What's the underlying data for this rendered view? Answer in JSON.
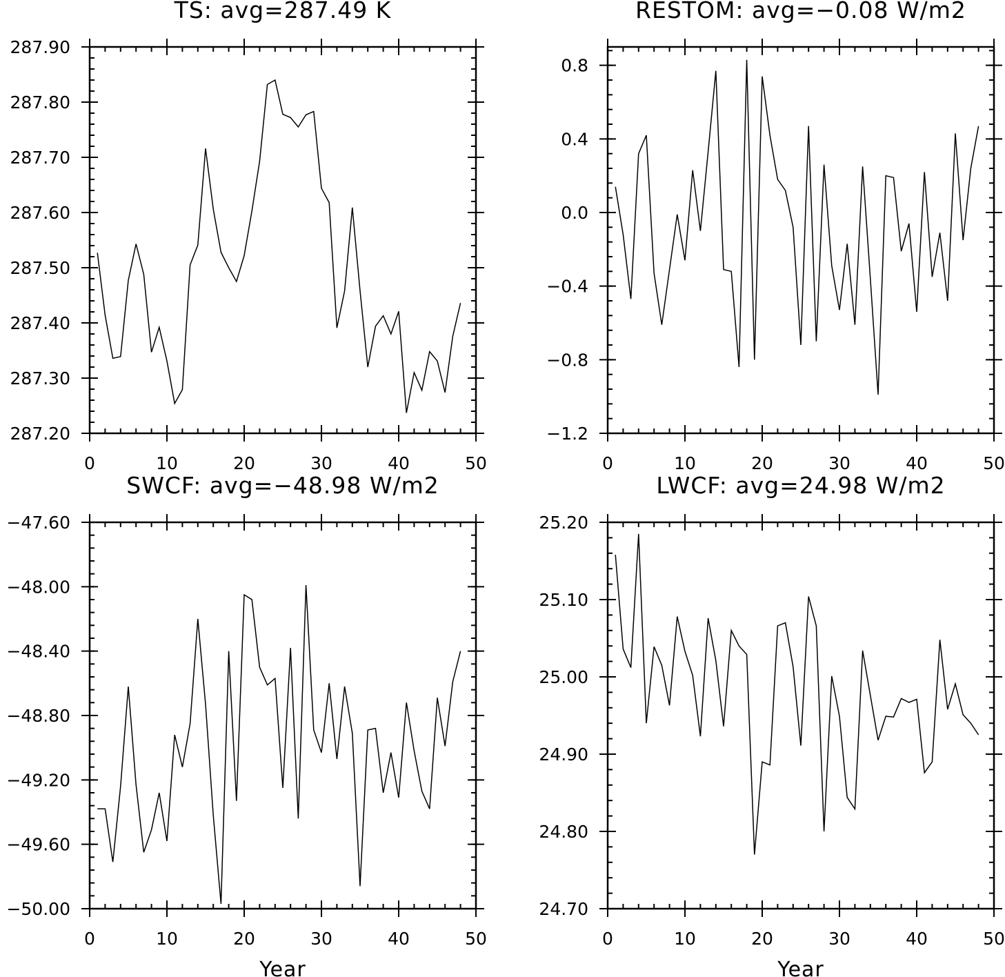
{
  "chart_data": [
    {
      "type": "line",
      "title": "TS: avg=287.49 K",
      "xlabel": "",
      "xlim": [
        0,
        50
      ],
      "ylim": [
        287.2,
        287.9
      ],
      "xticks": [
        0,
        10,
        20,
        30,
        40,
        50
      ],
      "xtick_labels": [
        "0",
        "10",
        "20",
        "30",
        "40",
        "50"
      ],
      "yticks": [
        287.2,
        287.3,
        287.4,
        287.5,
        287.6,
        287.7,
        287.8,
        287.9
      ],
      "ytick_labels": [
        "287.20",
        "287.30",
        "287.40",
        "287.50",
        "287.60",
        "287.70",
        "287.80",
        "287.90"
      ],
      "y_minor_step": 0.02,
      "x_minor_step": 2,
      "grid": false,
      "series": [
        {
          "x": [
            1,
            2,
            3,
            4,
            5,
            6,
            7,
            8,
            9,
            10,
            11,
            12,
            13,
            14,
            15,
            16,
            17,
            18,
            19,
            20,
            21,
            22,
            23,
            24,
            25,
            26,
            27,
            28,
            29,
            30,
            31,
            32,
            33,
            34,
            35,
            36,
            37,
            38,
            39,
            40,
            41,
            42,
            43,
            44,
            45,
            46,
            47,
            48
          ],
          "values": [
            287.527,
            287.414,
            287.336,
            287.339,
            287.477,
            287.543,
            287.488,
            287.347,
            287.392,
            287.331,
            287.254,
            287.279,
            287.505,
            287.541,
            287.716,
            287.606,
            287.528,
            287.5,
            287.475,
            287.522,
            287.603,
            287.693,
            287.832,
            287.84,
            287.778,
            287.772,
            287.755,
            287.777,
            287.783,
            287.644,
            287.618,
            287.391,
            287.458,
            287.609,
            287.458,
            287.32,
            287.394,
            287.413,
            287.38,
            287.421,
            287.237,
            287.31,
            287.278,
            287.348,
            287.331,
            287.274,
            287.376,
            287.436
          ]
        }
      ]
    },
    {
      "type": "line",
      "title": "RESTOM: avg=−0.08 W/m2",
      "xlabel": "",
      "xlim": [
        0,
        50
      ],
      "ylim": [
        -1.2,
        0.9
      ],
      "xticks": [
        0,
        10,
        20,
        30,
        40,
        50
      ],
      "xtick_labels": [
        "0",
        "10",
        "20",
        "30",
        "40",
        "50"
      ],
      "yticks": [
        -1.2,
        -0.8,
        -0.4,
        0.0,
        0.4,
        0.8
      ],
      "ytick_labels": [
        "−1.2",
        "−0.8",
        "−0.4",
        "0.0",
        "0.4",
        "0.8"
      ],
      "y_minor_step": 0.08,
      "x_minor_step": 2,
      "grid": false,
      "series": [
        {
          "x": [
            1,
            2,
            3,
            4,
            5,
            6,
            7,
            8,
            9,
            10,
            11,
            12,
            13,
            14,
            15,
            16,
            17,
            18,
            19,
            20,
            21,
            22,
            23,
            24,
            25,
            26,
            27,
            28,
            29,
            30,
            31,
            32,
            33,
            34,
            35,
            36,
            37,
            38,
            39,
            40,
            41,
            42,
            43,
            44,
            45,
            46,
            47,
            48
          ],
          "values": [
            0.14,
            -0.12,
            -0.47,
            0.32,
            0.42,
            -0.33,
            -0.61,
            -0.31,
            -0.01,
            -0.26,
            0.23,
            -0.1,
            0.33,
            0.77,
            -0.31,
            -0.32,
            -0.84,
            0.83,
            -0.8,
            0.74,
            0.42,
            0.18,
            0.12,
            -0.08,
            -0.72,
            0.47,
            -0.7,
            0.26,
            -0.29,
            -0.53,
            -0.17,
            -0.61,
            0.25,
            -0.36,
            -0.99,
            0.2,
            0.19,
            -0.21,
            -0.06,
            -0.54,
            0.22,
            -0.35,
            -0.11,
            -0.48,
            0.43,
            -0.15,
            0.24,
            0.47
          ]
        }
      ]
    },
    {
      "type": "line",
      "title": "SWCF: avg=−48.98 W/m2",
      "xlabel": "Year",
      "xlim": [
        0,
        50
      ],
      "ylim": [
        -50.0,
        -47.6
      ],
      "xticks": [
        0,
        10,
        20,
        30,
        40,
        50
      ],
      "xtick_labels": [
        "0",
        "10",
        "20",
        "30",
        "40",
        "50"
      ],
      "yticks": [
        -50.0,
        -49.6,
        -49.2,
        -48.8,
        -48.4,
        -48.0,
        -47.6
      ],
      "ytick_labels": [
        "−50.00",
        "−49.60",
        "−49.20",
        "−48.80",
        "−48.40",
        "−48.00",
        "−47.60"
      ],
      "y_minor_step": 0.08,
      "x_minor_step": 2,
      "grid": false,
      "series": [
        {
          "x": [
            1,
            2,
            3,
            4,
            5,
            6,
            7,
            8,
            9,
            10,
            11,
            12,
            13,
            14,
            15,
            16,
            17,
            18,
            19,
            20,
            21,
            22,
            23,
            24,
            25,
            26,
            27,
            28,
            29,
            30,
            31,
            32,
            33,
            34,
            35,
            36,
            37,
            38,
            39,
            40,
            41,
            42,
            43,
            44,
            45,
            46,
            47,
            48
          ],
          "values": [
            -49.38,
            -49.38,
            -49.71,
            -49.24,
            -48.62,
            -49.23,
            -49.65,
            -49.51,
            -49.28,
            -49.58,
            -48.92,
            -49.12,
            -48.85,
            -48.2,
            -48.73,
            -49.42,
            -49.97,
            -48.4,
            -49.33,
            -48.05,
            -48.08,
            -48.5,
            -48.61,
            -48.57,
            -49.25,
            -48.38,
            -49.44,
            -47.99,
            -48.89,
            -49.03,
            -48.6,
            -49.07,
            -48.62,
            -48.91,
            -49.86,
            -48.89,
            -48.88,
            -49.28,
            -49.03,
            -49.31,
            -48.72,
            -49.02,
            -49.27,
            -49.38,
            -48.69,
            -48.99,
            -48.59,
            -48.4
          ]
        }
      ]
    },
    {
      "type": "line",
      "title": "LWCF: avg=24.98 W/m2",
      "xlabel": "Year",
      "xlim": [
        0,
        50
      ],
      "ylim": [
        24.7,
        25.2
      ],
      "xticks": [
        0,
        10,
        20,
        30,
        40,
        50
      ],
      "xtick_labels": [
        "0",
        "10",
        "20",
        "30",
        "40",
        "50"
      ],
      "yticks": [
        24.7,
        24.8,
        24.9,
        25.0,
        25.1,
        25.2
      ],
      "ytick_labels": [
        "24.70",
        "24.80",
        "24.90",
        "25.00",
        "25.10",
        "25.20"
      ],
      "y_minor_step": 0.02,
      "x_minor_step": 2,
      "grid": false,
      "series": [
        {
          "x": [
            1,
            2,
            3,
            4,
            5,
            6,
            7,
            8,
            9,
            10,
            11,
            12,
            13,
            14,
            15,
            16,
            17,
            18,
            19,
            20,
            21,
            22,
            23,
            24,
            25,
            26,
            27,
            28,
            29,
            30,
            31,
            32,
            33,
            34,
            35,
            36,
            37,
            38,
            39,
            40,
            41,
            42,
            43,
            44,
            45,
            46,
            47,
            48
          ],
          "values": [
            25.158,
            25.036,
            25.012,
            25.185,
            24.94,
            25.039,
            25.015,
            24.963,
            25.078,
            25.033,
            25.002,
            24.923,
            25.076,
            25.021,
            24.936,
            25.06,
            25.04,
            25.029,
            24.77,
            24.89,
            24.886,
            25.066,
            25.07,
            25.013,
            24.911,
            25.104,
            25.066,
            24.8,
            25.001,
            24.949,
            24.844,
            24.829,
            25.034,
            24.976,
            24.918,
            24.949,
            24.948,
            24.972,
            24.967,
            24.971,
            24.876,
            24.89,
            25.048,
            24.958,
            24.991,
            24.951,
            24.94,
            24.925
          ]
        }
      ]
    }
  ]
}
